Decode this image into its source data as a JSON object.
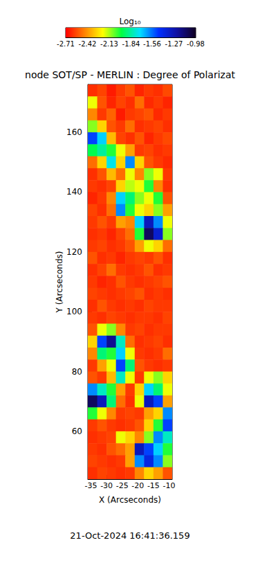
{
  "chart_data": {
    "type": "heatmap",
    "title": "node SOT/SP - MERLIN : Degree of Polarizat",
    "xlabel": "X (Arcseconds)",
    "ylabel": "Y (Arcseconds)",
    "annotation": "21-Oct-2024 16:41:36.159",
    "xlim": [
      -36,
      -9
    ],
    "ylim": [
      44,
      176
    ],
    "xticks": [
      -35,
      -30,
      -25,
      -20,
      -15,
      -10
    ],
    "yticks": [
      60,
      80,
      100,
      120,
      140,
      160
    ],
    "x": [
      -34.5,
      -31.5,
      -28.5,
      -25.5,
      -22.5,
      -19.5,
      -16.5,
      -13.5,
      -10.5
    ],
    "y": [
      174,
      170,
      166,
      162,
      158,
      154,
      150,
      146,
      142,
      138,
      134,
      130,
      126,
      122,
      118,
      114,
      110,
      106,
      102,
      98,
      94,
      90,
      86,
      82,
      78,
      74,
      70,
      66,
      62,
      58,
      54,
      50,
      46
    ],
    "values": [
      [
        -2.62,
        -2.58,
        -2.66,
        -2.6,
        -2.55,
        -2.64,
        -2.6,
        -2.62,
        -2.57
      ],
      [
        -2.2,
        -2.55,
        -2.64,
        -2.58,
        -2.62,
        -2.5,
        -2.63,
        -2.6,
        -2.64
      ],
      [
        -2.45,
        -2.6,
        -2.52,
        -2.66,
        -2.6,
        -2.58,
        -2.55,
        -2.63,
        -2.6
      ],
      [
        -2.1,
        -2.3,
        -2.55,
        -2.6,
        -2.5,
        -2.62,
        -2.6,
        -2.58,
        -2.62
      ],
      [
        -1.5,
        -1.7,
        -2.35,
        -2.58,
        -2.62,
        -2.55,
        -2.64,
        -2.6,
        -2.57
      ],
      [
        -1.95,
        -1.85,
        -2.0,
        -2.2,
        -2.4,
        -2.6,
        -2.58,
        -2.62,
        -2.6
      ],
      [
        -2.5,
        -2.3,
        -1.75,
        -2.3,
        -1.6,
        -2.3,
        -2.55,
        -2.6,
        -2.63
      ],
      [
        -2.62,
        -2.55,
        -2.35,
        -2.5,
        -2.2,
        -2.45,
        -2.1,
        -2.2,
        -2.6
      ],
      [
        -2.6,
        -2.62,
        -2.58,
        -2.3,
        -2.15,
        -2.2,
        -2.0,
        -2.45,
        -2.62
      ],
      [
        -2.64,
        -2.6,
        -2.45,
        -1.7,
        -1.9,
        -2.1,
        -2.2,
        -2.0,
        -2.55
      ],
      [
        -2.58,
        -2.62,
        -2.5,
        -1.6,
        -2.0,
        -2.2,
        -2.3,
        -2.1,
        -2.4
      ],
      [
        -2.6,
        -2.55,
        -2.6,
        -2.4,
        -2.45,
        -1.7,
        -1.3,
        -1.6,
        -2.2
      ],
      [
        -2.62,
        -2.6,
        -2.64,
        -2.58,
        -2.5,
        -2.0,
        -1.1,
        -1.35,
        -2.1
      ],
      [
        -2.6,
        -2.58,
        -2.62,
        -2.6,
        -2.55,
        -2.4,
        -2.2,
        -2.3,
        -2.5
      ],
      [
        -2.55,
        -2.62,
        -2.6,
        -2.64,
        -2.6,
        -2.58,
        -2.6,
        -2.55,
        -2.62
      ],
      [
        -2.62,
        -2.58,
        -2.5,
        -2.6,
        -2.62,
        -2.6,
        -2.55,
        -2.62,
        -2.6
      ],
      [
        -2.6,
        -2.64,
        -2.62,
        -2.55,
        -2.6,
        -2.62,
        -2.6,
        -2.58,
        -2.55
      ],
      [
        -2.58,
        -2.6,
        -2.62,
        -2.6,
        -2.58,
        -2.55,
        -2.62,
        -2.6,
        -2.62
      ],
      [
        -2.62,
        -2.55,
        -2.6,
        -2.62,
        -2.6,
        -2.62,
        -2.58,
        -2.6,
        -2.6
      ],
      [
        -2.6,
        -2.62,
        -2.58,
        -2.6,
        -2.62,
        -2.6,
        -2.6,
        -2.62,
        -2.58
      ],
      [
        -2.55,
        -2.2,
        -2.1,
        -2.45,
        -2.6,
        -2.58,
        -2.62,
        -2.6,
        -2.6
      ],
      [
        -2.3,
        -1.5,
        -1.2,
        -1.8,
        -2.5,
        -2.62,
        -2.6,
        -2.58,
        -2.62
      ],
      [
        -2.45,
        -1.9,
        -2.0,
        -1.7,
        -2.2,
        -2.6,
        -2.62,
        -2.6,
        -2.5
      ],
      [
        -2.6,
        -2.4,
        -2.2,
        -1.5,
        -1.9,
        -2.55,
        -2.6,
        -2.62,
        -2.6
      ],
      [
        -2.55,
        -2.6,
        -2.35,
        -1.8,
        -2.2,
        -2.6,
        -2.2,
        -2.1,
        -2.3
      ],
      [
        -1.6,
        -1.8,
        -2.0,
        -2.4,
        -2.6,
        -2.3,
        -1.7,
        -1.9,
        -2.2
      ],
      [
        -1.1,
        -1.3,
        -1.9,
        -2.5,
        -2.62,
        -2.2,
        -1.3,
        -1.5,
        -2.4
      ],
      [
        -2.0,
        -2.2,
        -2.45,
        -2.6,
        -2.58,
        -2.6,
        -2.4,
        -2.3,
        -1.6
      ],
      [
        -2.6,
        -2.55,
        -2.6,
        -2.62,
        -2.6,
        -2.55,
        -2.3,
        -2.0,
        -1.5
      ],
      [
        -2.62,
        -2.6,
        -2.58,
        -2.2,
        -2.3,
        -2.45,
        -2.1,
        -1.6,
        -1.8
      ],
      [
        -2.6,
        -2.62,
        -2.55,
        -2.5,
        -2.4,
        -1.3,
        -1.5,
        -1.7,
        -2.0
      ],
      [
        -2.58,
        -2.6,
        -2.62,
        -2.6,
        -2.4,
        -1.6,
        -1.4,
        -1.6,
        -2.1
      ],
      [
        -2.62,
        -2.58,
        -2.6,
        -2.62,
        -2.6,
        -2.45,
        -2.3,
        -2.4,
        -2.55
      ]
    ],
    "colorbar": {
      "title": "Log₁₀",
      "range": [
        -2.71,
        -0.98
      ],
      "ticks": [
        -2.71,
        -2.42,
        -2.13,
        -1.84,
        -1.56,
        -1.27,
        -0.98
      ]
    }
  }
}
